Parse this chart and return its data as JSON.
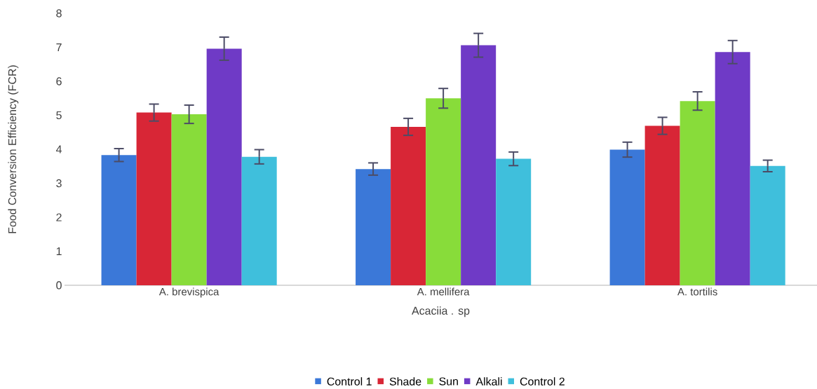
{
  "chart_data": {
    "type": "bar",
    "xlabel": "Acaciia . sp",
    "ylabel": "Food Conversion Efficiency (FCR)",
    "categories": [
      "A. brevispica",
      "A. mellifera",
      "A. tortilis"
    ],
    "ylim": [
      0,
      8
    ],
    "yticks": [
      0,
      1,
      2,
      3,
      4,
      5,
      6,
      7,
      8
    ],
    "legend": "bottom",
    "series": [
      {
        "name": "Control 1",
        "color": "#3b78d8",
        "values": [
          3.83,
          3.42,
          3.99
        ],
        "errors": [
          0.19,
          0.18,
          0.22
        ]
      },
      {
        "name": "Shade",
        "color": "#d82636",
        "values": [
          5.08,
          4.66,
          4.69
        ],
        "errors": [
          0.25,
          0.25,
          0.25
        ]
      },
      {
        "name": "Sun",
        "color": "#88dc3a",
        "values": [
          5.03,
          5.5,
          5.42
        ],
        "errors": [
          0.27,
          0.29,
          0.27
        ]
      },
      {
        "name": "Alkali",
        "color": "#6f3ac6",
        "values": [
          6.96,
          7.06,
          6.86
        ],
        "errors": [
          0.34,
          0.35,
          0.34
        ]
      },
      {
        "name": "Control 2",
        "color": "#3fbfdc",
        "values": [
          3.78,
          3.72,
          3.51
        ],
        "errors": [
          0.21,
          0.2,
          0.17
        ]
      }
    ]
  }
}
